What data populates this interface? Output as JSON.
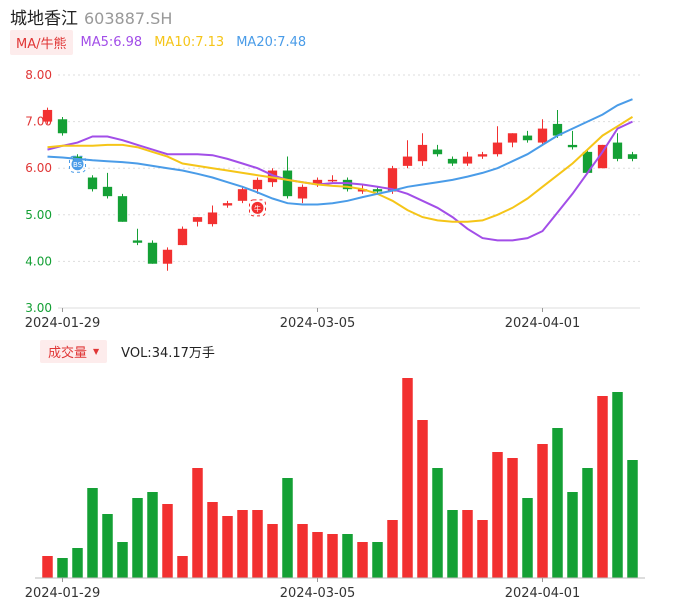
{
  "header": {
    "name": "城地香江",
    "code": "603887.SH"
  },
  "ma": {
    "tag": "MA/牛熊",
    "ma5": "MA5:6.98",
    "ma10": "MA10:7.13",
    "ma20": "MA20:7.48",
    "colors": {
      "ma5": "#a24ee8",
      "ma10": "#f5c518",
      "ma20": "#4a9ce8"
    }
  },
  "volume": {
    "tag": "成交量",
    "text": "VOL:34.17万手"
  },
  "colors": {
    "up": "#f23030",
    "down": "#14a035",
    "grid": "#dddddd",
    "tick_y": "#e03636",
    "tick_y_low": "#14a035"
  },
  "chart_data": [
    {
      "type": "candlestick",
      "ylim": [
        3.0,
        8.0
      ],
      "y_ticks": [
        "8.00",
        "7.00",
        "6.00",
        "5.00",
        "4.00",
        "3.00"
      ],
      "x_ticks": [
        {
          "index": 1,
          "label": "2024-01-29"
        },
        {
          "index": 18,
          "label": "2024-03-05"
        },
        {
          "index": 33,
          "label": "2024-04-01"
        }
      ],
      "markers": [
        {
          "index": 2,
          "label": "BS",
          "color": "#4a9ce8"
        },
        {
          "index": 14,
          "label": "牛",
          "color": "#f23030"
        }
      ],
      "candles": [
        [
          7.0,
          7.25,
          7.3,
          6.95
        ],
        [
          7.05,
          6.75,
          7.1,
          6.7
        ],
        [
          6.25,
          6.1,
          6.3,
          6.05
        ],
        [
          5.8,
          5.55,
          5.85,
          5.5
        ],
        [
          5.6,
          5.4,
          5.9,
          5.35
        ],
        [
          5.4,
          4.85,
          5.45,
          4.85
        ],
        [
          4.45,
          4.4,
          4.7,
          4.35
        ],
        [
          4.4,
          3.95,
          4.45,
          3.95
        ],
        [
          3.95,
          4.25,
          4.3,
          3.8
        ],
        [
          4.35,
          4.7,
          4.75,
          4.35
        ],
        [
          4.85,
          4.95,
          4.95,
          4.75
        ],
        [
          4.8,
          5.05,
          5.2,
          4.75
        ],
        [
          5.2,
          5.25,
          5.3,
          5.15
        ],
        [
          5.3,
          5.55,
          5.6,
          5.25
        ],
        [
          5.55,
          5.75,
          5.8,
          5.45
        ],
        [
          5.7,
          5.95,
          6.0,
          5.6
        ],
        [
          5.95,
          5.4,
          6.25,
          5.35
        ],
        [
          5.35,
          5.6,
          5.65,
          5.25
        ],
        [
          5.65,
          5.75,
          5.8,
          5.6
        ],
        [
          5.75,
          5.75,
          5.85,
          5.7
        ],
        [
          5.75,
          5.55,
          5.8,
          5.5
        ],
        [
          5.5,
          5.55,
          5.65,
          5.45
        ],
        [
          5.55,
          5.5,
          5.6,
          5.45
        ],
        [
          5.5,
          6.0,
          6.05,
          5.45
        ],
        [
          6.05,
          6.25,
          6.6,
          6.0
        ],
        [
          6.15,
          6.5,
          6.75,
          6.05
        ],
        [
          6.4,
          6.3,
          6.5,
          6.25
        ],
        [
          6.2,
          6.1,
          6.25,
          6.05
        ],
        [
          6.1,
          6.25,
          6.35,
          6.05
        ],
        [
          6.25,
          6.3,
          6.35,
          6.2
        ],
        [
          6.3,
          6.55,
          6.9,
          6.25
        ],
        [
          6.55,
          6.75,
          6.75,
          6.45
        ],
        [
          6.7,
          6.6,
          6.8,
          6.55
        ],
        [
          6.55,
          6.85,
          7.05,
          6.5
        ],
        [
          6.95,
          6.7,
          7.25,
          6.65
        ],
        [
          6.5,
          6.45,
          6.8,
          6.4
        ],
        [
          6.35,
          5.9,
          6.4,
          5.9
        ],
        [
          6.0,
          6.5,
          6.5,
          6.0
        ],
        [
          6.55,
          6.2,
          6.75,
          6.15
        ],
        [
          6.3,
          6.2,
          6.35,
          6.15
        ]
      ],
      "series": [
        {
          "name": "MA5",
          "values": [
            6.4,
            6.48,
            6.55,
            6.68,
            6.68,
            6.6,
            6.5,
            6.4,
            6.3,
            6.3,
            6.3,
            6.28,
            6.2,
            6.1,
            6.0,
            5.85,
            5.75,
            5.7,
            5.65,
            5.68,
            5.68,
            5.65,
            5.6,
            5.55,
            5.45,
            5.3,
            5.15,
            4.95,
            4.7,
            4.5,
            4.45,
            4.45,
            4.5,
            4.65,
            5.05,
            5.45,
            5.9,
            6.35,
            6.85,
            7.0
          ]
        },
        {
          "name": "MA10",
          "values": [
            6.45,
            6.48,
            6.48,
            6.48,
            6.5,
            6.5,
            6.45,
            6.35,
            6.25,
            6.1,
            6.05,
            6.0,
            5.95,
            5.9,
            5.85,
            5.8,
            5.75,
            5.7,
            5.65,
            5.62,
            5.6,
            5.55,
            5.45,
            5.3,
            5.1,
            4.95,
            4.88,
            4.85,
            4.85,
            4.88,
            5.0,
            5.15,
            5.35,
            5.6,
            5.85,
            6.1,
            6.4,
            6.7,
            6.9,
            7.1
          ]
        },
        {
          "name": "MA20",
          "values": [
            6.25,
            6.23,
            6.2,
            6.17,
            6.15,
            6.13,
            6.1,
            6.05,
            6.0,
            5.95,
            5.88,
            5.8,
            5.7,
            5.6,
            5.48,
            5.35,
            5.25,
            5.22,
            5.22,
            5.25,
            5.3,
            5.38,
            5.45,
            5.52,
            5.6,
            5.65,
            5.7,
            5.75,
            5.82,
            5.9,
            6.0,
            6.15,
            6.3,
            6.5,
            6.7,
            6.85,
            7.0,
            7.15,
            7.35,
            7.48
          ]
        }
      ]
    },
    {
      "type": "bar",
      "ylim": [
        0,
        100
      ],
      "values": [
        11,
        10,
        15,
        45,
        32,
        18,
        40,
        43,
        37,
        11,
        55,
        38,
        31,
        34,
        34,
        27,
        50,
        27,
        23,
        22,
        22,
        18,
        18,
        29,
        100,
        79,
        55,
        34,
        34,
        29,
        63,
        60,
        40,
        67,
        75,
        43,
        55,
        91,
        93,
        59
      ],
      "x_ticks": [
        {
          "index": 1,
          "label": "2024-01-29"
        },
        {
          "index": 18,
          "label": "2024-03-05"
        },
        {
          "index": 33,
          "label": "2024-04-01"
        }
      ]
    }
  ]
}
